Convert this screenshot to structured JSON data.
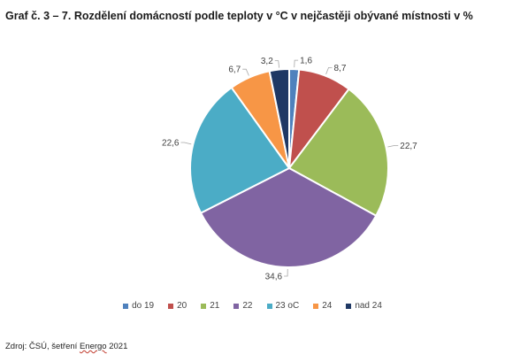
{
  "title": "Graf č. 3 – 7. Rozdělení domácností podle teploty v °C v nejčastěji obývané místnosti v %",
  "source": {
    "prefix": "Zdroj: ČSÚ, šetření ",
    "underlined": "Energo",
    "suffix": " 2021"
  },
  "chart_data": {
    "type": "pie",
    "title": "Graf č. 3 – 7. Rozdělení domácností podle teploty v °C v nejčastěji obývané místnosti v %",
    "legend_position": "bottom",
    "categories": [
      "do 19",
      "20",
      "21",
      "22",
      "23 oC",
      "24",
      "nad 24"
    ],
    "values": [
      1.6,
      8.7,
      22.7,
      34.6,
      22.6,
      6.7,
      3.2
    ],
    "labels": [
      "1,6",
      "8,7",
      "22,7",
      "34,6",
      "22,6",
      "6,7",
      "3,2"
    ],
    "colors": [
      "#4F81BD",
      "#C0504D",
      "#9BBB59",
      "#8064A2",
      "#4BACC6",
      "#F79646",
      "#1F3864"
    ]
  }
}
